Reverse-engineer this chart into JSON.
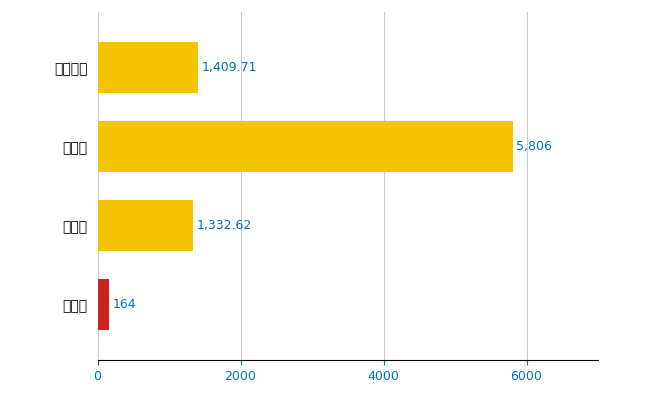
{
  "categories": [
    "紀宝町",
    "県平均",
    "県最大",
    "全国平均"
  ],
  "values": [
    164,
    1332.62,
    5806,
    1409.71
  ],
  "labels": [
    "164",
    "1,332.62",
    "5,806",
    "1,409.71"
  ],
  "bar_colors": [
    "#cc2222",
    "#f5c400",
    "#f5c400",
    "#f5c400"
  ],
  "xlim": [
    0,
    7000
  ],
  "xticks": [
    0,
    2000,
    4000,
    6000
  ],
  "background_color": "#ffffff",
  "grid_color": "#cccccc",
  "label_color": "#0070c0",
  "label_fontsize": 9,
  "tick_fontsize": 9,
  "ytick_fontsize": 10,
  "bar_height": 0.65
}
